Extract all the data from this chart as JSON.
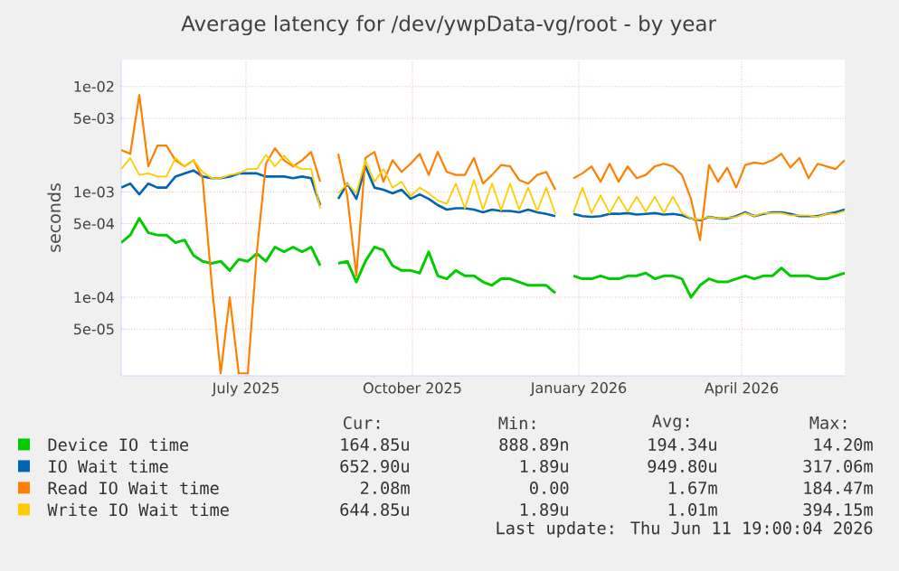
{
  "chart_data": {
    "type": "line",
    "title": "Average latency for /dev/ywpData-vg/root - by year",
    "ylabel": "seconds",
    "x": [
      "2025-04-23",
      "2025-04-28",
      "2025-05-03",
      "2025-05-08",
      "2025-05-13",
      "2025-05-18",
      "2025-05-23",
      "2025-05-28",
      "2025-06-02",
      "2025-06-07",
      "2025-06-12",
      "2025-06-17",
      "2025-06-22",
      "2025-06-27",
      "2025-07-02",
      "2025-07-07",
      "2025-07-12",
      "2025-07-17",
      "2025-07-22",
      "2025-07-27",
      "2025-08-01",
      "2025-08-06",
      "2025-08-11",
      "2025-08-16",
      "2025-08-21",
      "2025-08-26",
      "2025-08-31",
      "2025-09-05",
      "2025-09-10",
      "2025-09-15",
      "2025-09-20",
      "2025-09-25",
      "2025-09-30",
      "2025-10-05",
      "2025-10-10",
      "2025-10-15",
      "2025-10-20",
      "2025-10-25",
      "2025-10-30",
      "2025-11-04",
      "2025-11-09",
      "2025-11-14",
      "2025-11-19",
      "2025-11-24",
      "2025-11-29",
      "2025-12-04",
      "2025-12-09",
      "2025-12-14",
      "2025-12-19",
      "2025-12-24",
      "2025-12-29",
      "2026-01-03",
      "2026-01-08",
      "2026-01-13",
      "2026-01-18",
      "2026-01-23",
      "2026-01-28",
      "2026-02-02",
      "2026-02-07",
      "2026-02-12",
      "2026-02-17",
      "2026-02-22",
      "2026-02-27",
      "2026-03-04",
      "2026-03-09",
      "2026-03-14",
      "2026-03-19",
      "2026-03-24",
      "2026-03-29",
      "2026-04-03",
      "2026-04-08",
      "2026-04-13",
      "2026-04-18",
      "2026-04-23",
      "2026-04-28",
      "2026-05-03",
      "2026-05-08",
      "2026-05-13",
      "2026-05-18",
      "2026-05-23",
      "2026-05-28"
    ],
    "series": [
      {
        "name": "Device IO time",
        "color": "#00cc00",
        "values": [
          0.00033,
          0.00039,
          0.00056,
          0.00041,
          0.00039,
          0.00039,
          0.00033,
          0.00035,
          0.00025,
          0.00022,
          0.00021,
          0.00022,
          0.00018,
          0.00023,
          0.00022,
          0.00026,
          0.00022,
          0.0003,
          0.00027,
          0.0003,
          0.00027,
          0.0003,
          0.0002,
          null,
          0.00021,
          0.00022,
          0.00014,
          0.00022,
          0.0003,
          0.00028,
          0.0002,
          0.00018,
          0.00018,
          0.00017,
          0.00027,
          0.00016,
          0.00015,
          0.00018,
          0.00016,
          0.00016,
          0.00014,
          0.00013,
          0.00015,
          0.00015,
          0.00014,
          0.00013,
          0.00013,
          0.00013,
          0.00011,
          null,
          0.00016,
          0.00015,
          0.00015,
          0.00016,
          0.00015,
          0.00015,
          0.00016,
          0.00016,
          0.00017,
          0.00015,
          0.00016,
          0.00016,
          0.00015,
          0.0001,
          0.00013,
          0.00015,
          0.00014,
          0.00014,
          0.00015,
          0.00016,
          0.00015,
          0.00016,
          0.00016,
          0.00019,
          0.00016,
          0.00016,
          0.00016,
          0.00015,
          0.00015,
          0.00016,
          0.00017
        ]
      },
      {
        "name": "IO Wait time",
        "color": "#0066b3",
        "values": [
          0.0011,
          0.0012,
          0.00095,
          0.0012,
          0.0011,
          0.0011,
          0.0014,
          0.0015,
          0.0016,
          0.0014,
          0.00135,
          0.00135,
          0.0014,
          0.0015,
          0.0015,
          0.0015,
          0.0014,
          0.0014,
          0.0014,
          0.00135,
          0.0014,
          0.00135,
          0.00075,
          null,
          0.00086,
          0.0012,
          0.00086,
          0.00175,
          0.0011,
          0.00105,
          0.00097,
          0.00105,
          0.00086,
          0.00095,
          0.00086,
          0.00075,
          0.00068,
          0.0007,
          0.0007,
          0.00068,
          0.00064,
          0.00068,
          0.00066,
          0.00066,
          0.00064,
          0.00068,
          0.00064,
          0.00062,
          0.00059,
          null,
          0.00062,
          0.00059,
          0.00058,
          0.00059,
          0.00062,
          0.00062,
          0.00063,
          0.00061,
          0.00062,
          0.00063,
          0.00061,
          0.00062,
          0.0006,
          0.00056,
          0.00054,
          0.00058,
          0.00056,
          0.00056,
          0.00059,
          0.00064,
          0.00059,
          0.00062,
          0.00064,
          0.00064,
          0.00062,
          0.00059,
          0.00059,
          0.00059,
          0.00062,
          0.00064,
          0.00068
        ]
      },
      {
        "name": "Read IO Wait time",
        "color": "#ff8000",
        "values": [
          0.0025,
          0.0023,
          0.0083,
          0.00175,
          0.00275,
          0.00275,
          0.002,
          0.00175,
          0.002,
          0.00135,
          0.000138,
          1.9e-05,
          0.0001,
          1.9e-05,
          1.9e-05,
          0.00027,
          0.00185,
          0.0026,
          0.002,
          0.00175,
          0.002,
          0.0024,
          0.00125,
          null,
          0.0023,
          0.00091,
          0.00016,
          0.0021,
          0.0024,
          0.00125,
          0.002,
          0.00155,
          0.00185,
          0.0023,
          0.00145,
          0.0024,
          0.00155,
          0.00145,
          0.00145,
          0.0021,
          0.0012,
          0.00145,
          0.0018,
          0.00175,
          0.0013,
          0.0012,
          0.00145,
          0.00155,
          0.00105,
          null,
          0.00135,
          0.0015,
          0.00175,
          0.00125,
          0.00185,
          0.00125,
          0.00175,
          0.00135,
          0.00145,
          0.00175,
          0.00185,
          0.00175,
          0.00145,
          0.00086,
          0.00035,
          0.0018,
          0.00125,
          0.0017,
          0.0011,
          0.0018,
          0.0019,
          0.00185,
          0.002,
          0.0023,
          0.0017,
          0.0021,
          0.00135,
          0.00185,
          0.00175,
          0.00165,
          0.002
        ]
      },
      {
        "name": "Write IO Wait time",
        "color": "#ffcc00",
        "values": [
          0.00165,
          0.0021,
          0.00145,
          0.0015,
          0.0014,
          0.0014,
          0.0021,
          0.00175,
          0.002,
          0.00155,
          0.00135,
          0.00135,
          0.00145,
          0.0015,
          0.00165,
          0.00165,
          0.00225,
          0.00175,
          0.0022,
          0.0018,
          0.00165,
          0.00165,
          0.0007,
          null,
          0.00097,
          0.0012,
          0.00097,
          0.002,
          0.00125,
          0.00165,
          0.0011,
          0.00125,
          0.00091,
          0.0011,
          0.00097,
          0.00083,
          0.00077,
          0.0012,
          0.0007,
          0.0013,
          0.00068,
          0.0012,
          0.00067,
          0.0012,
          0.00068,
          0.0011,
          0.00066,
          0.0011,
          0.00062,
          null,
          0.00064,
          0.0011,
          0.00063,
          0.00093,
          0.00063,
          0.0009,
          0.00065,
          0.0009,
          0.00065,
          0.0009,
          0.00063,
          0.0009,
          0.00063,
          0.00056,
          0.00055,
          0.00058,
          0.00056,
          0.00057,
          0.00058,
          0.00063,
          0.00059,
          0.00063,
          0.00063,
          0.00063,
          0.0006,
          0.0006,
          0.0006,
          0.00058,
          0.00062,
          0.00062,
          0.00066
        ]
      }
    ],
    "xlim": [
      "2025-04-23",
      "2026-05-28"
    ],
    "xticks": [
      {
        "value": "2025-07-01",
        "label": "July 2025"
      },
      {
        "value": "2025-10-01",
        "label": "October 2025"
      },
      {
        "value": "2026-01-01",
        "label": "January 2026"
      },
      {
        "value": "2026-04-01",
        "label": "April 2026"
      }
    ],
    "ylim": [
      1.8e-05,
      0.018
    ],
    "yticks": [
      {
        "value": 0.01,
        "label": "1e-02"
      },
      {
        "value": 0.005,
        "label": "5e-03"
      },
      {
        "value": 0.001,
        "label": "1e-03"
      },
      {
        "value": 0.0005,
        "label": "5e-04"
      },
      {
        "value": 0.0001,
        "label": "1e-04"
      },
      {
        "value": 5e-05,
        "label": "5e-05"
      }
    ],
    "log": "y",
    "grid": true,
    "legend": "bottom",
    "marker": "none",
    "line_style": "solid",
    "annotations": [
      "Cur:",
      "Min:",
      "Avg:",
      "Max:",
      "164.85u",
      "888.89n",
      "194.34u",
      "14.20m",
      "652.90u",
      "1.89u",
      "949.80u",
      "317.06m",
      "2.08m",
      "0.00",
      "1.67m",
      "184.47m",
      "644.85u",
      "1.89u",
      "1.01m",
      "394.15m",
      "Last update: Thu Jun 11 19:00:04 2026"
    ]
  }
}
